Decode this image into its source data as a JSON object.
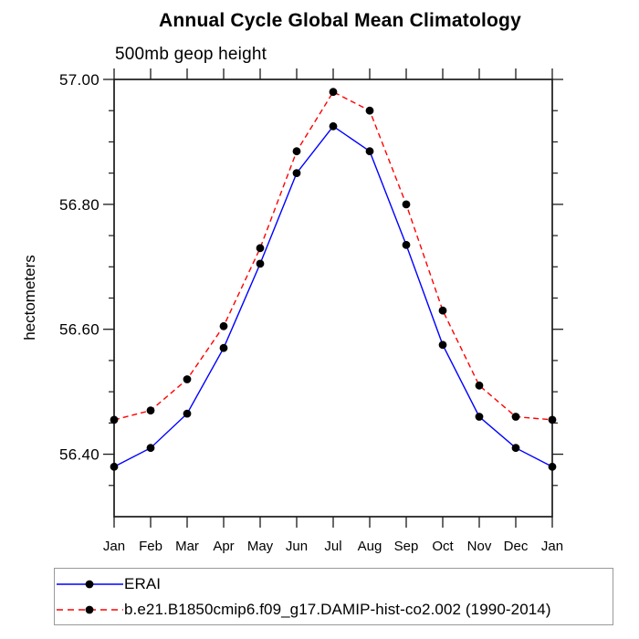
{
  "chart_data": {
    "type": "line",
    "title": "Annual Cycle Global Mean Climatology",
    "subtitle": "500mb geop height",
    "ylabel": "hectometers",
    "xlabel": "",
    "categories": [
      "Jan",
      "Feb",
      "Mar",
      "Apr",
      "May",
      "Jun",
      "Jul",
      "Aug",
      "Sep",
      "Oct",
      "Nov",
      "Dec",
      "Jan"
    ],
    "ylim": [
      56.3,
      57.0
    ],
    "y_major_ticks": [
      56.4,
      56.6,
      56.8,
      57.0
    ],
    "y_minor_step": 0.05,
    "grid": false,
    "legend_position": "bottom-left-outside",
    "axis_color": "#1a1a1a",
    "background_color": "#ffffff",
    "series": [
      {
        "name": "ERAI",
        "color": "#0000ff",
        "line_style": "solid",
        "marker": "filled-circle",
        "marker_color": "#000000",
        "values": [
          56.38,
          56.41,
          56.465,
          56.57,
          56.705,
          56.85,
          56.925,
          56.885,
          56.735,
          56.575,
          56.46,
          56.41,
          56.38
        ]
      },
      {
        "name": "b.e21.B1850cmip6.f09_g17.DAMIP-hist-co2.002 (1990-2014)",
        "color": "#ff0000",
        "line_style": "dashed",
        "marker": "filled-circle",
        "marker_color": "#000000",
        "values": [
          56.455,
          56.47,
          56.52,
          56.605,
          56.73,
          56.885,
          56.98,
          56.95,
          56.8,
          56.63,
          56.51,
          56.46,
          56.455
        ]
      }
    ]
  }
}
